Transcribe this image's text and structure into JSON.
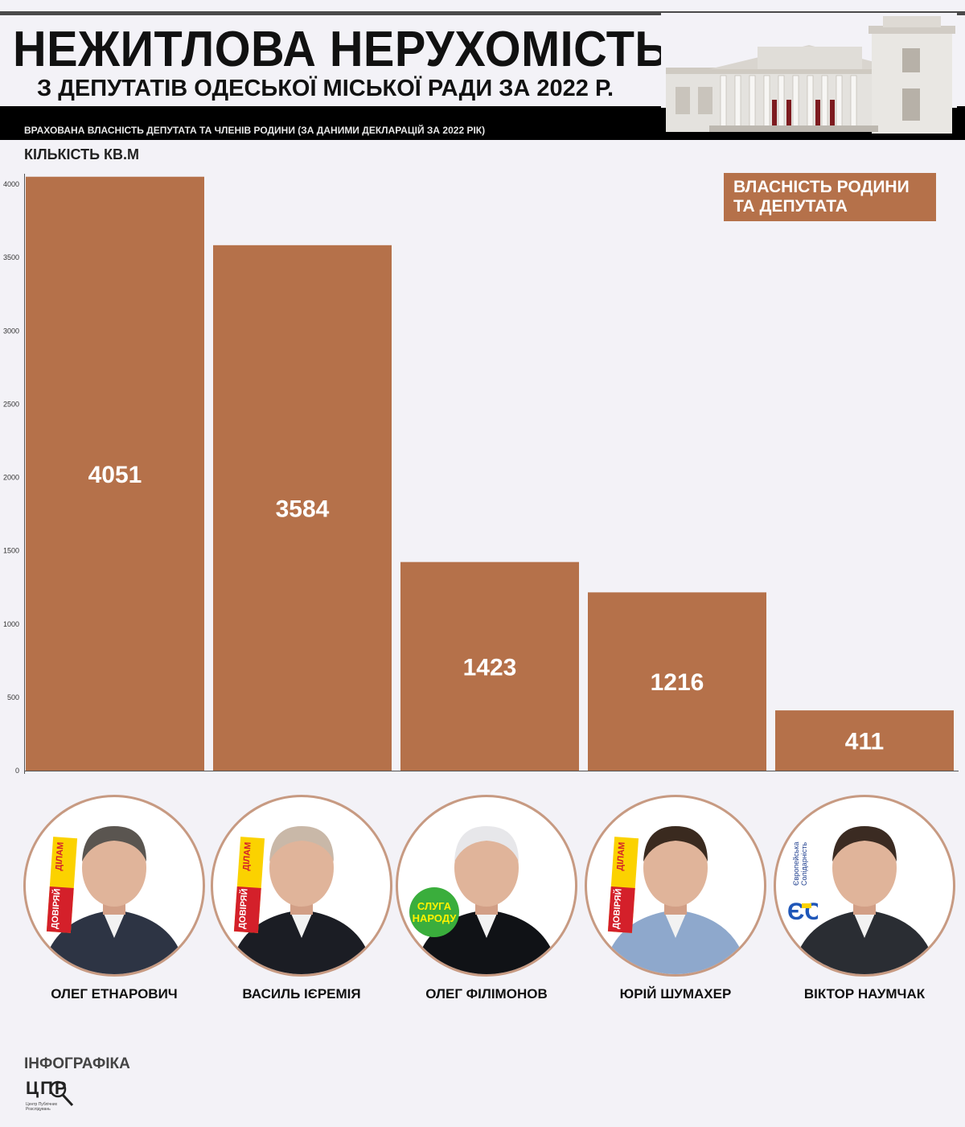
{
  "header": {
    "title": "НЕЖИТЛОВА НЕРУХОМІСТЬ",
    "subtitle": "З ДЕПУТАТІВ ОДЕСЬКОЇ МІСЬКОЇ РАДИ ЗА 2022 Р.",
    "band_text": "ВРАХОВАНА ВЛАСНІСТЬ ДЕПУТАТА ТА ЧЛЕНІВ РОДИНИ (ЗА ДАНИМИ ДЕКЛАРАЦІЙ ЗА 2022 РІК)"
  },
  "chart_data": {
    "type": "bar",
    "title": "",
    "ylabel": "КІЛЬКІСТЬ КВ.М",
    "xlabel": "",
    "categories": [
      "ОЛЕГ ЕТНАРОВИЧ",
      "ВАСИЛЬ ІЄРЕМІЯ",
      "ОЛЕГ ФІЛІМОНОВ",
      "ЮРІЙ ШУМАХЕР",
      "ВІКТОР НАУМЧАК"
    ],
    "series": [
      {
        "name": "ВЛАСНІСТЬ РОДИНИ\nТА ДЕПУТАТА",
        "values": [
          4051,
          3584,
          1423,
          1216,
          411
        ]
      }
    ],
    "value_labels": [
      "4051",
      "3584",
      "1423",
      "1216",
      "411"
    ],
    "ylim": [
      0,
      4000
    ],
    "yticks": [
      0,
      500,
      1000,
      1500,
      2000,
      2500,
      3000,
      3500,
      4000
    ],
    "ytick_labels": [
      "0",
      "500",
      "1000",
      "1500",
      "2000",
      "2500",
      "3000",
      "3500",
      "4000"
    ],
    "grid": false,
    "legend": "top-right",
    "bar_color": "#b5714a"
  },
  "people": [
    {
      "name": "ОЛЕГ ЕТНАРОВИЧ",
      "party": "dd"
    },
    {
      "name": "ВАСИЛЬ ІЄРЕМІЯ",
      "party": "dd"
    },
    {
      "name": "ОЛЕГ ФІЛІМОНОВ",
      "party": "sn"
    },
    {
      "name": "ЮРІЙ ШУМАХЕР",
      "party": "dd"
    },
    {
      "name": "ВІКТОР НАУМЧАК",
      "party": "es"
    }
  ],
  "party_badges": {
    "dd_line1": "ДОВІРЯЙ",
    "dd_line2": "ДІЛАМ",
    "sn_text": "СЛУГА НАРОДУ",
    "es_text": "Європейська Солідарність",
    "es_mark": "ЄС"
  },
  "footer": {
    "label": "ІНФОГРАФІКА",
    "logo_text": "ЦПР",
    "logo_small": "Центр Публічних Розслідувань"
  },
  "colors": {
    "bar": "#b5714a",
    "background": "#f3f2f7",
    "portrait_border": "#c79a82"
  }
}
